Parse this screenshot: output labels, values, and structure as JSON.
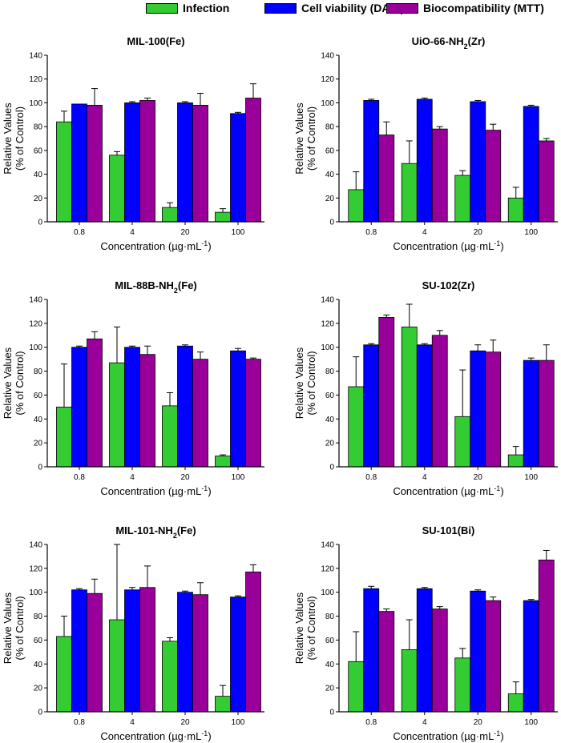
{
  "legend": [
    {
      "label": "Infection",
      "color": "#33cc33"
    },
    {
      "label": "Cell viability (DAPI)",
      "color": "#0000ff"
    },
    {
      "label": "Biocompatibility (MTT)",
      "color": "#990099"
    }
  ],
  "chart_data": [
    {
      "type": "bar",
      "title_main": "MIL-100(Fe)",
      "title_sub": "",
      "title_tail": "",
      "categories": [
        "0.8",
        "4",
        "20",
        "100"
      ],
      "ylabel_line1": "Relative Values",
      "ylabel_line2": "(% of Control)",
      "xlabel": "Concentration (µg·mL",
      "xlabel_sup": "-1",
      "xlabel_tail": ")",
      "ylim": [
        0,
        140
      ],
      "yticks": [
        "0",
        "20",
        "40",
        "60",
        "80",
        "100",
        "120",
        "140"
      ],
      "series": [
        {
          "name": "Infection",
          "values": [
            84,
            56,
            12,
            8
          ],
          "errors": [
            9,
            3,
            4,
            3
          ]
        },
        {
          "name": "Cell viability (DAPI)",
          "values": [
            99,
            100,
            100,
            91
          ],
          "errors": [
            0,
            1,
            1,
            1
          ]
        },
        {
          "name": "Biocompatibility (MTT)",
          "values": [
            98,
            102,
            98,
            104
          ],
          "errors": [
            14,
            2,
            10,
            12
          ]
        }
      ]
    },
    {
      "type": "bar",
      "title_main": "UiO-66-NH",
      "title_sub": "2",
      "title_tail": "(Zr)",
      "categories": [
        "0.8",
        "4",
        "20",
        "100"
      ],
      "ylabel_line1": "Relative Values",
      "ylabel_line2": "(% of Control)",
      "xlabel": "Concentration (µg·mL",
      "xlabel_sup": "-1",
      "xlabel_tail": ")",
      "ylim": [
        0,
        140
      ],
      "yticks": [
        "0",
        "20",
        "40",
        "60",
        "80",
        "100",
        "120",
        "140"
      ],
      "series": [
        {
          "name": "Infection",
          "values": [
            27,
            49,
            39,
            20
          ],
          "errors": [
            15,
            19,
            4,
            9
          ]
        },
        {
          "name": "Cell viability (DAPI)",
          "values": [
            102,
            103,
            101,
            97
          ],
          "errors": [
            1,
            1,
            1,
            1
          ]
        },
        {
          "name": "Biocompatibility (MTT)",
          "values": [
            73,
            78,
            77,
            68
          ],
          "errors": [
            11,
            2,
            5,
            2
          ]
        }
      ]
    },
    {
      "type": "bar",
      "title_main": "MIL-88B-NH",
      "title_sub": "2",
      "title_tail": "(Fe)",
      "categories": [
        "0.8",
        "4",
        "20",
        "100"
      ],
      "ylabel_line1": "Relative Values",
      "ylabel_line2": "(% of Control)",
      "xlabel": "Concentration (µg·mL",
      "xlabel_sup": "-1",
      "xlabel_tail": ")",
      "ylim": [
        0,
        140
      ],
      "yticks": [
        "0",
        "20",
        "40",
        "60",
        "80",
        "100",
        "120",
        "140"
      ],
      "series": [
        {
          "name": "Infection",
          "values": [
            50,
            87,
            51,
            9
          ],
          "errors": [
            36,
            30,
            11,
            1
          ]
        },
        {
          "name": "Cell viability (DAPI)",
          "values": [
            100,
            100,
            101,
            97
          ],
          "errors": [
            1,
            1,
            1,
            2
          ]
        },
        {
          "name": "Biocompatibility (MTT)",
          "values": [
            107,
            94,
            90,
            90
          ],
          "errors": [
            6,
            7,
            6,
            1
          ]
        }
      ]
    },
    {
      "type": "bar",
      "title_main": "SU-102(Zr)",
      "title_sub": "",
      "title_tail": "",
      "categories": [
        "0.8",
        "4",
        "20",
        "100"
      ],
      "ylabel_line1": "Relative Values",
      "ylabel_line2": "(% of Control)",
      "xlabel": "Concentration (µg·mL",
      "xlabel_sup": "-1",
      "xlabel_tail": ")",
      "ylim": [
        0,
        140
      ],
      "yticks": [
        "0",
        "20",
        "40",
        "60",
        "80",
        "100",
        "120",
        "140"
      ],
      "series": [
        {
          "name": "Infection",
          "values": [
            67,
            117,
            42,
            10
          ],
          "errors": [
            25,
            19,
            39,
            7
          ]
        },
        {
          "name": "Cell viability (DAPI)",
          "values": [
            102,
            102,
            97,
            89
          ],
          "errors": [
            1,
            1,
            5,
            2
          ]
        },
        {
          "name": "Biocompatibility (MTT)",
          "values": [
            125,
            110,
            96,
            89
          ],
          "errors": [
            2,
            4,
            10,
            13
          ]
        }
      ]
    },
    {
      "type": "bar",
      "title_main": "MIL-101-NH",
      "title_sub": "2",
      "title_tail": "(Fe)",
      "categories": [
        "0.8",
        "4",
        "20",
        "100"
      ],
      "ylabel_line1": "Relative Values",
      "ylabel_line2": "(% of Control)",
      "xlabel": "Concentration (µg·mL",
      "xlabel_sup": "-1",
      "xlabel_tail": ")",
      "ylim": [
        0,
        140
      ],
      "yticks": [
        "0",
        "20",
        "40",
        "60",
        "80",
        "100",
        "120",
        "140"
      ],
      "series": [
        {
          "name": "Infection",
          "values": [
            63,
            77,
            59,
            13
          ],
          "errors": [
            17,
            63,
            3,
            9
          ]
        },
        {
          "name": "Cell viability (DAPI)",
          "values": [
            102,
            102,
            100,
            96
          ],
          "errors": [
            1,
            2,
            1,
            1
          ]
        },
        {
          "name": "Biocompatibility (MTT)",
          "values": [
            99,
            104,
            98,
            117
          ],
          "errors": [
            12,
            18,
            10,
            6
          ]
        }
      ]
    },
    {
      "type": "bar",
      "title_main": "SU-101(Bi)",
      "title_sub": "",
      "title_tail": "",
      "categories": [
        "0.8",
        "4",
        "20",
        "100"
      ],
      "ylabel_line1": "Relative Values",
      "ylabel_line2": "(% of Control)",
      "xlabel": "Concentration (µg·mL",
      "xlabel_sup": "-1",
      "xlabel_tail": ")",
      "ylim": [
        0,
        140
      ],
      "yticks": [
        "0",
        "20",
        "40",
        "60",
        "80",
        "100",
        "120",
        "140"
      ],
      "series": [
        {
          "name": "Infection",
          "values": [
            42,
            52,
            45,
            15
          ],
          "errors": [
            25,
            25,
            8,
            10
          ]
        },
        {
          "name": "Cell viability (DAPI)",
          "values": [
            103,
            103,
            101,
            93
          ],
          "errors": [
            2,
            1,
            1,
            1
          ]
        },
        {
          "name": "Biocompatibility (MTT)",
          "values": [
            84,
            86,
            93,
            127
          ],
          "errors": [
            2,
            2,
            3,
            8
          ]
        }
      ]
    }
  ]
}
